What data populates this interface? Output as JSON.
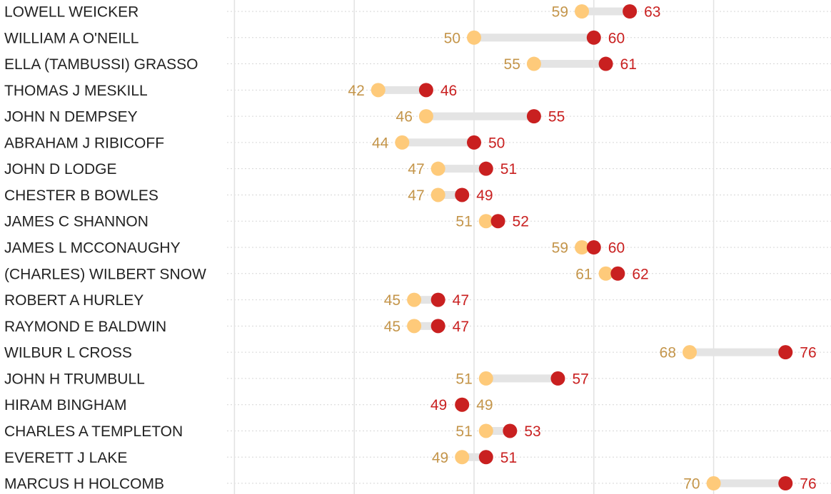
{
  "chart_data": {
    "type": "dot-range",
    "title": "",
    "xlabel": "",
    "ylabel": "",
    "xlim": [
      30,
      80
    ],
    "grid_x": [
      30,
      40,
      50,
      60,
      70
    ],
    "grid": true,
    "series": [
      {
        "name": "low",
        "color": "#FECA7A",
        "label_color": "#C4954A"
      },
      {
        "name": "high",
        "color": "#C92020",
        "label_color": "#C92020"
      }
    ],
    "bar_color": "#E4E4E4",
    "rows": [
      {
        "name": "LOWELL WEICKER",
        "low": 59,
        "high": 63
      },
      {
        "name": "WILLIAM A O'NEILL",
        "low": 50,
        "high": 60
      },
      {
        "name": "ELLA (TAMBUSSI) GRASSO",
        "low": 55,
        "high": 61
      },
      {
        "name": "THOMAS J MESKILL",
        "low": 42,
        "high": 46
      },
      {
        "name": "JOHN N DEMPSEY",
        "low": 46,
        "high": 55
      },
      {
        "name": "ABRAHAM J RIBICOFF",
        "low": 44,
        "high": 50
      },
      {
        "name": "JOHN D LODGE",
        "low": 47,
        "high": 51
      },
      {
        "name": "CHESTER B BOWLES",
        "low": 47,
        "high": 49
      },
      {
        "name": "JAMES C SHANNON",
        "low": 51,
        "high": 52
      },
      {
        "name": "JAMES L MCCONAUGHY",
        "low": 59,
        "high": 60
      },
      {
        "name": "(CHARLES) WILBERT SNOW",
        "low": 61,
        "high": 62
      },
      {
        "name": "ROBERT A HURLEY",
        "low": 45,
        "high": 47
      },
      {
        "name": "RAYMOND E BALDWIN",
        "low": 45,
        "high": 47
      },
      {
        "name": "WILBUR L CROSS",
        "low": 68,
        "high": 76
      },
      {
        "name": "JOHN H TRUMBULL",
        "low": 51,
        "high": 57
      },
      {
        "name": "HIRAM BINGHAM",
        "low": 49,
        "high": 49
      },
      {
        "name": "CHARLES A TEMPLETON",
        "low": 51,
        "high": 53
      },
      {
        "name": "EVERETT J LAKE",
        "low": 49,
        "high": 51
      },
      {
        "name": "MARCUS H HOLCOMB",
        "low": 70,
        "high": 76
      }
    ]
  }
}
